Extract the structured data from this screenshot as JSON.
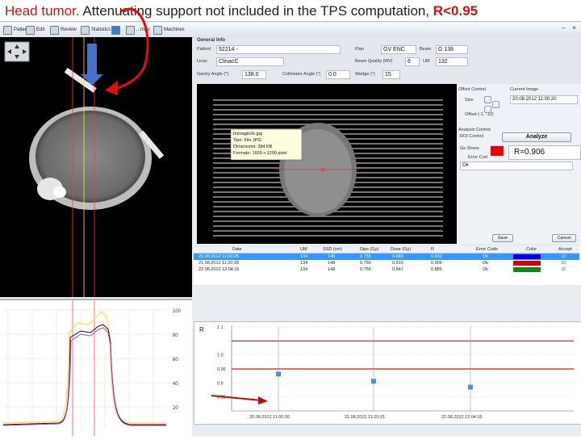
{
  "title": {
    "part1": "Head tumor.",
    "part2": "Attenuating support not included in the TPS computation,",
    "part3": "R<0.95"
  },
  "toolbar": {
    "items": [
      "Patients",
      "Edit",
      "Review",
      "Statistics",
      "",
      "...map",
      "Machines"
    ],
    "win_min": "–",
    "win_close": "×"
  },
  "general_info": {
    "heading": "General Info",
    "patient_label": "Patient",
    "patient_value": "52214 -",
    "linac_label": "Linac",
    "linac_value": "ClinacC",
    "gantry_label": "Gantry Angle (°)",
    "gantry_value": "138.0",
    "collimator_label": "Collimator Angle (°)",
    "collimator_value": "0.0",
    "plan_label": "Plan",
    "plan_value": "GV ENC",
    "beam_label": "Beam",
    "beam_value": "G 138",
    "beam_quality_label": "Beam Quality (MV)",
    "beam_quality_value": "6",
    "um_label": "UM",
    "um_value": "132",
    "wedge_label": "Wedge (°)",
    "wedge_value": "15"
  },
  "tooltip": {
    "line1": "Immagin2e.jpg",
    "line2": "Tipo: File JPG",
    "line3": "Dimensioni: 384 KB",
    "line4": "Formato: 1600 x 1200 pixel"
  },
  "controls": {
    "offset_heading": "Offset Control",
    "current_image_heading": "Current Image",
    "current_image_value": "20.08.2012 11:00:20",
    "size_label": "Size",
    "offset_label": "Offset (-1, -12)",
    "analysis_heading": "Analysis Control",
    "roi_control": "ROI Control",
    "analyze_button": "Analyze",
    "gs_sinew_label": "Gs Sinew",
    "error_code_label": "Error Cod",
    "r_value_text": "R=0.906",
    "select_value": "Ok",
    "save_button": "Save",
    "cancel_button": "Cancel"
  },
  "table": {
    "headers": [
      "Date",
      "UM",
      "SSD (cm)",
      "Dips (Gy)",
      "Dose (Gy)",
      "R",
      "Error Code",
      "Color",
      "Accept"
    ],
    "rows": [
      {
        "date": "20.08.2012 11:00:25",
        "um": "134",
        "ssd": "148",
        "dips": "0.756",
        "dose": "0.683",
        "r": "0.932",
        "error": "Ok",
        "color": "#0000dd",
        "accept": "☑"
      },
      {
        "date": "21.08.2012 11:20:28",
        "um": "134",
        "ssd": "148",
        "dips": "0.756",
        "dose": "0.810",
        "r": "0.906",
        "error": "Ok",
        "color": "#dd0000",
        "accept": "☑"
      },
      {
        "date": "22.08.2012 12:04:15",
        "um": "134",
        "ssd": "148",
        "dips": "0.756",
        "dose": "0.847",
        "r": "0.885",
        "error": "Ok",
        "color": "#118811",
        "accept": "☑"
      }
    ]
  },
  "r_plot": {
    "ylabel": "R",
    "ticks": [
      "1.1",
      "1.0",
      "0.95",
      "0.9",
      "0.85"
    ],
    "xlabels": [
      "20.08.2012 11:00:20",
      "21.08.2012 11:20:21",
      "22.08.2012 12:04:15"
    ]
  },
  "chart_data": {
    "type": "scatter",
    "ylabel": "R",
    "ylim": [
      0.8,
      1.1
    ],
    "categories": [
      "20.08.2012 11:00:20",
      "21.08.2012 11:20:21",
      "22.08.2012 12:04:15"
    ],
    "values": [
      0.932,
      0.906,
      0.885
    ],
    "reference_lines": [
      1.05,
      0.95
    ]
  },
  "profile_plot": {
    "ticks_right": [
      "100",
      "80",
      "60",
      "40",
      "20"
    ]
  },
  "colors": {
    "accent_red": "#d01010",
    "selected_row": "#3399ff",
    "point_blue": "#4a90d9"
  }
}
